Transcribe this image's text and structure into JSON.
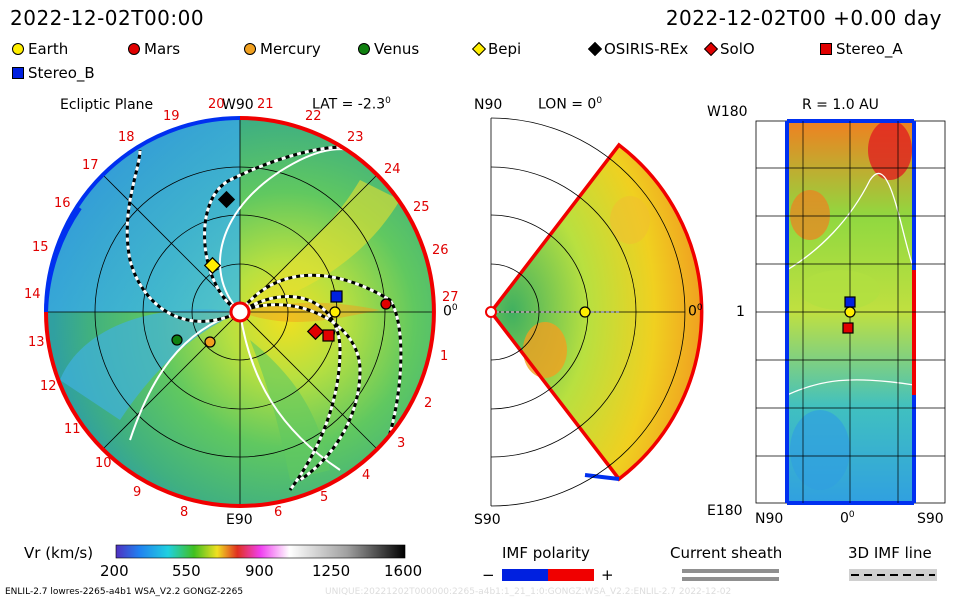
{
  "header": {
    "left_title": "2022-12-02T00:00",
    "right_title": "2022-12-02T00 +0.00 day"
  },
  "legend": [
    {
      "label": "Earth",
      "shape": "circle",
      "color": "#ffee00"
    },
    {
      "label": "Mars",
      "shape": "circle",
      "color": "#e00000"
    },
    {
      "label": "Mercury",
      "shape": "circle",
      "color": "#f0a020"
    },
    {
      "label": "Venus",
      "shape": "circle",
      "color": "#108010"
    },
    {
      "label": "Bepi",
      "shape": "diamond",
      "color": "#ffee00"
    },
    {
      "label": "OSIRIS-REx",
      "shape": "diamond",
      "color": "#000000"
    },
    {
      "label": "SolO",
      "shape": "diamond",
      "color": "#e00000"
    },
    {
      "label": "Stereo_A",
      "shape": "square",
      "color": "#e00000"
    },
    {
      "label": "Stereo_B",
      "shape": "square",
      "color": "#0020e0"
    }
  ],
  "ecliptic": {
    "title": "Ecliptic Plane",
    "top_label": "W90",
    "lat_label": "LAT = -2.3",
    "lat_deg": "0",
    "right_label": "0",
    "right_deg": "0",
    "bottom_label": "E90",
    "sectors": [
      "1",
      "2",
      "3",
      "4",
      "5",
      "6",
      "8",
      "9",
      "10",
      "11",
      "12",
      "13",
      "14",
      "15",
      "16",
      "17",
      "18",
      "19",
      "20",
      "21",
      "22",
      "23",
      "24",
      "25",
      "26",
      "27"
    ]
  },
  "meridional": {
    "top_label": "N90",
    "lon_label": "LON = 0",
    "lon_deg": "0",
    "right_label": "0",
    "right_deg": "0",
    "bottom_label": "S90"
  },
  "map": {
    "left_top": "W180",
    "r_label": "R = 1.0 AU",
    "left_mid": "1",
    "left_bottom": "E180",
    "bottom_left": "N90",
    "bottom_mid": "0",
    "bottom_mid_deg": "0",
    "bottom_right": "S90"
  },
  "colorbar": {
    "label": "Vr (km/s)",
    "ticks": [
      "200",
      "550",
      "900",
      "1250",
      "1600"
    ]
  },
  "imf": {
    "label": "IMF polarity",
    "minus": "−",
    "plus": "+"
  },
  "sheath": {
    "label": "Current sheath"
  },
  "imf3d": {
    "label": "3D IMF line"
  },
  "footer": {
    "left": "ENLIL-2.7 lowres-2265-a4b1 WSA_V2.2 GONGZ-2265",
    "right": "UNIQUE:20221202T000000:2265-a4b1:1_21_1:0:GONGZ:WSA_V2.2:ENLIL-2.7   2022-12-02"
  }
}
